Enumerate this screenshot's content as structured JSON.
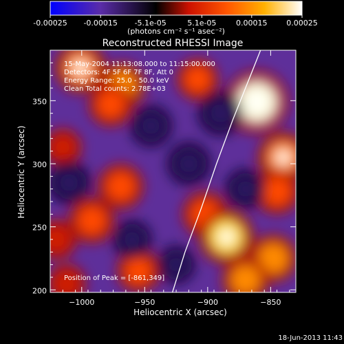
{
  "chart_data": {
    "type": "heatmap",
    "title": "Reconstructed RHESSI Image",
    "colorbar": {
      "ticks": [
        "-0.00025",
        "-0.00015",
        "-5.1e-05",
        "5.1e-05",
        "0.00015",
        "0.00025"
      ],
      "tick_values": [
        -0.00025,
        -0.00015,
        -5.1e-05,
        5.1e-05,
        0.00015,
        0.00025
      ],
      "range": [
        -0.00025,
        0.00025
      ],
      "unit_label": "(photons cm⁻² s⁻¹ asec⁻²)",
      "colormap": [
        "#0000ff",
        "#5a2ca8",
        "#000000",
        "#cc1100",
        "#ff5500",
        "#ff9a00",
        "#ffff80",
        "#ffffff"
      ]
    },
    "xlabel": "Heliocentric X (arcsec)",
    "ylabel": "Heliocentric Y (arcsec)",
    "xlim": [
      -1025,
      -830
    ],
    "ylim": [
      198,
      390
    ],
    "x_ticks": [
      -1000,
      -950,
      -900,
      -850
    ],
    "x_tick_labels": [
      "−1000",
      "−950",
      "−900",
      "−850"
    ],
    "y_ticks": [
      200,
      250,
      300,
      350
    ],
    "y_tick_labels": [
      "200",
      "250",
      "300",
      "350"
    ],
    "annotations": [
      "15-May-2004 11:13:08.000 to 11:15:00.000",
      "Detectors: 4F 5F 6F 7F 8F, Att 0",
      "Energy Range: 25.0 - 50.0 keV",
      "Clean     Total counts: 2.78E+03"
    ],
    "peak_label": "Position of Peak = [-861,349]",
    "peak": [
      -861,
      349
    ],
    "limb": [
      [
        -928,
        198
      ],
      [
        -918,
        230
      ],
      [
        -905,
        265
      ],
      [
        -893,
        300
      ],
      [
        -880,
        335
      ],
      [
        -866,
        370
      ],
      [
        -858,
        390
      ]
    ],
    "blobs": [
      {
        "x": -861,
        "y": 349,
        "v": 0.00025
      },
      {
        "x": -1001,
        "y": 376,
        "v": 0.00016
      },
      {
        "x": -968,
        "y": 362,
        "v": 0.00013
      },
      {
        "x": -977,
        "y": 347,
        "v": 0.00011
      },
      {
        "x": -908,
        "y": 367,
        "v": 9e-05
      },
      {
        "x": -1015,
        "y": 313,
        "v": 6e-05
      },
      {
        "x": -969,
        "y": 282,
        "v": 0.00012
      },
      {
        "x": -992,
        "y": 255,
        "v": 0.00012
      },
      {
        "x": -902,
        "y": 260,
        "v": 0.00012
      },
      {
        "x": -885,
        "y": 242,
        "v": 0.00019
      },
      {
        "x": -840,
        "y": 305,
        "v": 0.00016
      },
      {
        "x": -845,
        "y": 278,
        "v": 0.00012
      },
      {
        "x": -848,
        "y": 225,
        "v": 0.00014
      },
      {
        "x": -870,
        "y": 208,
        "v": 0.00013
      },
      {
        "x": -955,
        "y": 215,
        "v": 0.0001
      },
      {
        "x": -1012,
        "y": 205,
        "v": 7e-05
      },
      {
        "x": -1020,
        "y": 240,
        "v": 8e-05
      },
      {
        "x": -945,
        "y": 330,
        "v": -9e-05
      },
      {
        "x": -915,
        "y": 300,
        "v": -0.0001
      },
      {
        "x": -890,
        "y": 340,
        "v": -0.00011
      },
      {
        "x": -1010,
        "y": 285,
        "v": -0.0001
      },
      {
        "x": -960,
        "y": 240,
        "v": -7e-05
      },
      {
        "x": -925,
        "y": 220,
        "v": -6e-05
      },
      {
        "x": -870,
        "y": 280,
        "v": -8e-05
      }
    ]
  },
  "footer": {
    "timestamp": "18-Jun-2013 11:43"
  }
}
